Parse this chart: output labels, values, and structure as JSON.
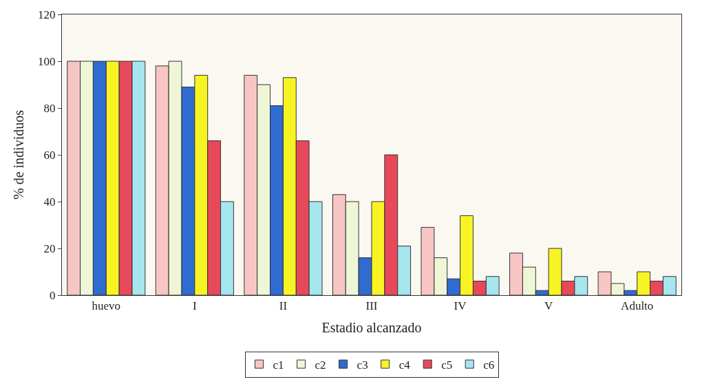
{
  "chart_data": {
    "type": "bar",
    "xlabel": "Estadio alcanzado",
    "ylabel": "% de individuos",
    "categories": [
      "huevo",
      "I",
      "II",
      "III",
      "IV",
      "V",
      "Adulto"
    ],
    "series": [
      {
        "name": "c1",
        "color": "#f7c6c4",
        "values": [
          100,
          98,
          94,
          43,
          29,
          18,
          10
        ]
      },
      {
        "name": "c2",
        "color": "#eef6d6",
        "values": [
          100,
          100,
          90,
          40,
          16,
          12,
          5
        ]
      },
      {
        "name": "c3",
        "color": "#2f6bd0",
        "values": [
          100,
          89,
          81,
          16,
          7,
          2,
          2
        ]
      },
      {
        "name": "c4",
        "color": "#f8f424",
        "values": [
          100,
          94,
          93,
          40,
          34,
          20,
          10
        ]
      },
      {
        "name": "c5",
        "color": "#e8495a",
        "values": [
          100,
          66,
          66,
          60,
          6,
          6,
          6
        ]
      },
      {
        "name": "c6",
        "color": "#a6e6ee",
        "values": [
          100,
          40,
          40,
          21,
          8,
          8,
          8
        ]
      }
    ],
    "ylim": [
      0,
      120
    ],
    "yticks": [
      0,
      20,
      40,
      60,
      80,
      100,
      120
    ],
    "grid": false,
    "legend": "bottom"
  }
}
